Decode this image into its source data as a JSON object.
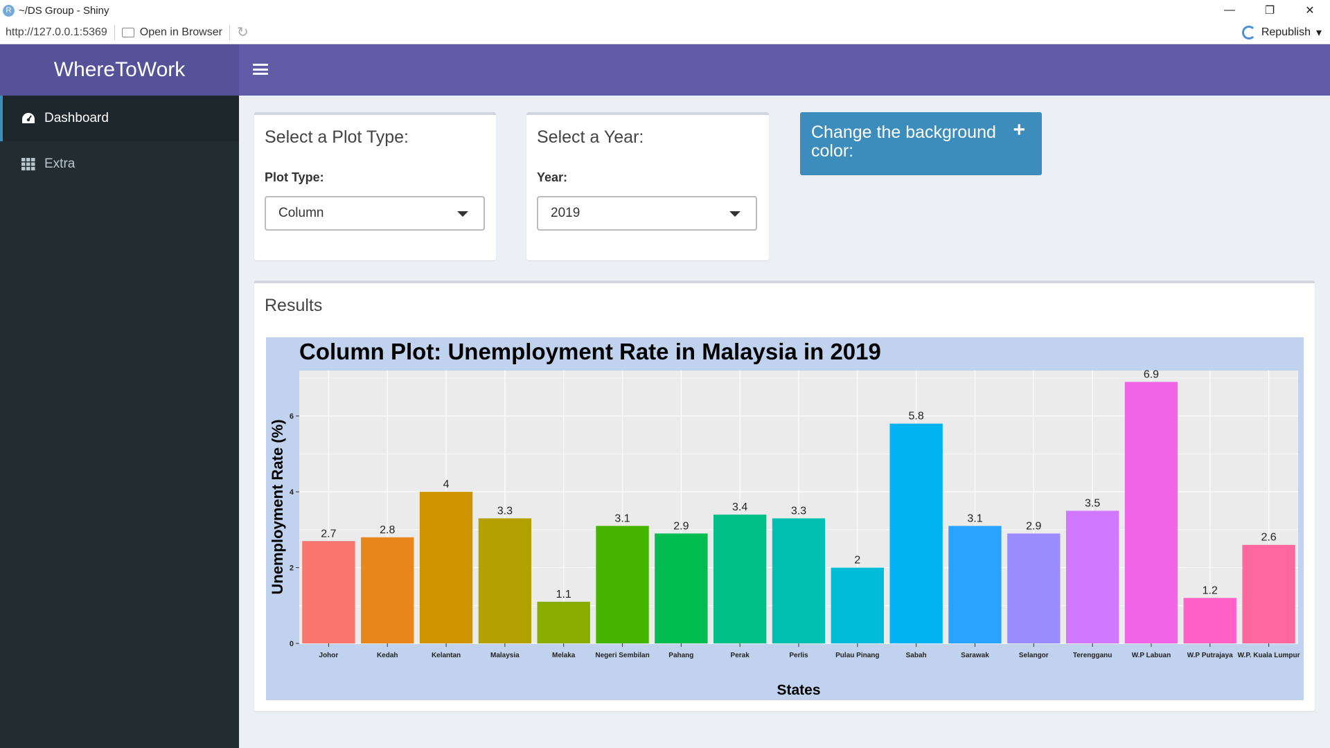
{
  "window": {
    "title": "~/DS Group - Shiny",
    "r_logo": "R",
    "minimize": "—",
    "maximize": "❐",
    "close": "✕"
  },
  "addressbar": {
    "url": "http://127.0.0.1:5369",
    "open_in_browser": "Open in Browser",
    "republish": "Republish"
  },
  "header": {
    "app_title": "WhereToWork"
  },
  "sidebar": {
    "items": [
      {
        "label": "Dashboard",
        "icon": "dashboard-icon",
        "active": true
      },
      {
        "label": "Extra",
        "icon": "th-grid-icon",
        "active": false
      }
    ]
  },
  "plot_type_box": {
    "title": "Select a Plot Type:",
    "label": "Plot Type:",
    "selected": "Column"
  },
  "year_box": {
    "title": "Select a Year:",
    "label": "Year:",
    "selected": "2019"
  },
  "bg_box": {
    "title": "Change the background color:",
    "toggle": "+"
  },
  "results_box": {
    "title": "Results"
  },
  "colors": {
    "header": "#605ca8",
    "logo": "#555299",
    "sidebar": "#222d32",
    "primary_box": "#3c8dbc",
    "plot_bg": "#c0d2ee",
    "panel_bg": "#ebebeb"
  },
  "chart_data": {
    "type": "bar",
    "title": "Column Plot: Unemployment Rate in Malaysia in 2019",
    "xlabel": "States",
    "ylabel": "Unemployment Rate (%)",
    "ylim": [
      0,
      7.2
    ],
    "yticks": [
      0,
      2,
      4,
      6
    ],
    "grid": true,
    "categories": [
      "Johor",
      "Kedah",
      "Kelantan",
      "Malaysia",
      "Melaka",
      "Negeri Sembilan",
      "Pahang",
      "Perak",
      "Perlis",
      "Pulau Pinang",
      "Sabah",
      "Sarawak",
      "Selangor",
      "Terengganu",
      "W.P Labuan",
      "W.P Putrajaya",
      "W.P. Kuala Lumpur"
    ],
    "values": [
      2.7,
      2.8,
      4,
      3.3,
      1.1,
      3.1,
      2.9,
      3.4,
      3.3,
      2,
      5.8,
      3.1,
      2.9,
      3.5,
      6.9,
      1.2,
      2.6
    ],
    "colors": [
      "#F8766D",
      "#E7861B",
      "#D09400",
      "#B2A100",
      "#89AC00",
      "#45B500",
      "#00BC51",
      "#00C087",
      "#00C0B2",
      "#00BCD6",
      "#00B3F2",
      "#29A3FF",
      "#9C8DFF",
      "#D277FF",
      "#F166E8",
      "#FF61C7",
      "#FF689E"
    ]
  }
}
